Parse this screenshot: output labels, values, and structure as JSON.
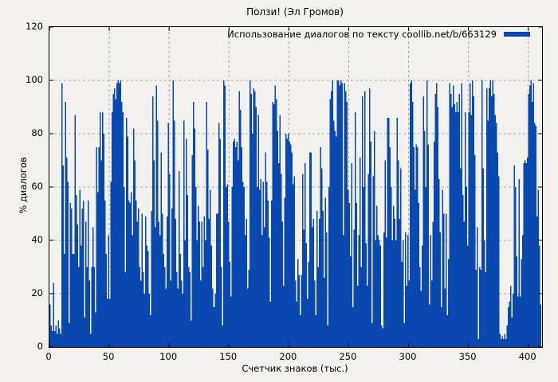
{
  "title": "Ползи! (Эл Громов)",
  "colors": {
    "background": "#f2f1ee",
    "bar": "#0948ae",
    "grid": "#a9a9a9",
    "axis": "#000000",
    "text": "#000000"
  },
  "legend": {
    "label": "Использование диалогов по тексту coollib.net/b/663129"
  },
  "chart_data": {
    "type": "bar",
    "title": "Ползи! (Эл Громов)",
    "legend": "Использование диалогов по тексту coollib.net/b/663129",
    "legend_position": "top-right",
    "xlabel": "Счетчик знаков (тыс.)",
    "ylabel": "% диалогов",
    "xlim": [
      0,
      411.5
    ],
    "ylim": [
      0,
      120
    ],
    "xticks": [
      0,
      50,
      100,
      150,
      200,
      250,
      300,
      350,
      400
    ],
    "yticks": [
      0,
      20,
      40,
      60,
      80,
      100,
      120
    ],
    "grid": true,
    "x_start": 0,
    "x_step": 1,
    "values": [
      16,
      8,
      6,
      24,
      6,
      8,
      5,
      10,
      7,
      5,
      99,
      68,
      35,
      92,
      71,
      62,
      9,
      54,
      52,
      35,
      35,
      87,
      57,
      46,
      30,
      59,
      38,
      52,
      55,
      11,
      47,
      30,
      55,
      25,
      5,
      30,
      45,
      30,
      13,
      75,
      58,
      75,
      88,
      70,
      88,
      80,
      55,
      35,
      18,
      42,
      18,
      62,
      88,
      95,
      97,
      93,
      99,
      100,
      99,
      100,
      92,
      88,
      60,
      28,
      86,
      79,
      55,
      54,
      58,
      42,
      82,
      70,
      55,
      47,
      52,
      30,
      25,
      50,
      28,
      20,
      49,
      38,
      36,
      20,
      12,
      51,
      94,
      70,
      45,
      98,
      85,
      47,
      42,
      73,
      50,
      35,
      30,
      22,
      49,
      84,
      65,
      25,
      52,
      100,
      85,
      48,
      28,
      22,
      66,
      35,
      25,
      20,
      85,
      40,
      78,
      57,
      30,
      28,
      10,
      72,
      92,
      82,
      60,
      40,
      53,
      47,
      25,
      47,
      30,
      49,
      40,
      92,
      74,
      48,
      59,
      38,
      22,
      15,
      20,
      50,
      50,
      84,
      78,
      30,
      8,
      100,
      98,
      60,
      61,
      47,
      32,
      19,
      60,
      77,
      78,
      75,
      77,
      70,
      96,
      89,
      75,
      62,
      60,
      42,
      48,
      22,
      29,
      100,
      95,
      80,
      97,
      96,
      90,
      60,
      87,
      59,
      63,
      42,
      62,
      45,
      73,
      62,
      55,
      41,
      17,
      55,
      92,
      91,
      98,
      93,
      81,
      69,
      87,
      65,
      47,
      23,
      56,
      80,
      78,
      80,
      77,
      76,
      73,
      61,
      64,
      25,
      17,
      33,
      27,
      12,
      27,
      65,
      44,
      69,
      39,
      18,
      32,
      73,
      73,
      45,
      48,
      25,
      12,
      51,
      30,
      48,
      75,
      67,
      51,
      26,
      56,
      43,
      8,
      60,
      93,
      96,
      100,
      85,
      81,
      79,
      100,
      100,
      98,
      100,
      99,
      42,
      99,
      96,
      92,
      59,
      54,
      34,
      69,
      15,
      44,
      88,
      54,
      23,
      42,
      71,
      30,
      94,
      60,
      96,
      39,
      23,
      65,
      97,
      77,
      9,
      64,
      81,
      40,
      53,
      42,
      40,
      38,
      8,
      7,
      43,
      70,
      41,
      86,
      86,
      75,
      60,
      40,
      53,
      48,
      40,
      86,
      70,
      48,
      67,
      32,
      40,
      9,
      43,
      23,
      42,
      25,
      99,
      100,
      92,
      75,
      59,
      76,
      75,
      54,
      30,
      21,
      38,
      94,
      81,
      60,
      100,
      76,
      16,
      42,
      25,
      47,
      77,
      95,
      99,
      90,
      63,
      43,
      15,
      59,
      50,
      22,
      50,
      12,
      33,
      99,
      95,
      90,
      98,
      91,
      88,
      92,
      88,
      95,
      67,
      99,
      57,
      47,
      88,
      60,
      38,
      88,
      99,
      87,
      100,
      94,
      72,
      29,
      45,
      3,
      30,
      29,
      100,
      67,
      40,
      28,
      97,
      85,
      97,
      100,
      94,
      100,
      95,
      87,
      84,
      73,
      64,
      5,
      3,
      4,
      3,
      5,
      3,
      8,
      15,
      17,
      23,
      11,
      20,
      68,
      60,
      34,
      19,
      63,
      19,
      33,
      42,
      69,
      70,
      69,
      71,
      95,
      98,
      100,
      92,
      99,
      84,
      83,
      49,
      59,
      38,
      16
    ]
  }
}
